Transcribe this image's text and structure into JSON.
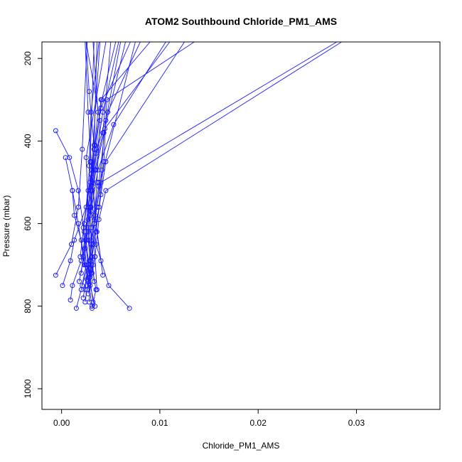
{
  "chart_data": {
    "type": "scatter",
    "title": "ATOM2 Southbound Chloride_PM1_AMS",
    "xlabel": "Chloride_PM1_AMS",
    "ylabel": "Pressure (mbar)",
    "xlim": [
      -0.002,
      0.0385
    ],
    "ylim": [
      1050,
      160
    ],
    "y_reversed": true,
    "x_ticks": [
      0.0,
      0.01,
      0.02,
      0.03
    ],
    "x_tick_labels": [
      "0.00",
      "0.01",
      "0.02",
      "0.03"
    ],
    "y_ticks": [
      200,
      400,
      600,
      800,
      1000
    ],
    "y_tick_labels": [
      "200",
      "400",
      "600",
      "800",
      "1000"
    ],
    "grid": false,
    "legend": "none",
    "series_color": "#1a1aff",
    "marker": "open-circle",
    "series": [
      {
        "x": [
          0.0069,
          0.0048,
          0.0035,
          0.003,
          0.0042,
          0.0058
        ],
        "y": [
          805,
          750,
          650,
          520,
          330,
          160
        ]
      },
      {
        "x": [
          0.0031,
          0.0035,
          0.003,
          0.0027,
          0.0025,
          0.0045
        ],
        "y": [
          805,
          760,
          690,
          560,
          440,
          160
        ]
      },
      {
        "x": [
          0.0015,
          0.002,
          0.0025,
          0.0022,
          0.003,
          0.0039
        ],
        "y": [
          805,
          760,
          700,
          610,
          480,
          160
        ]
      },
      {
        "x": [
          0.0009,
          0.0011,
          0.002,
          0.0027,
          0.0033,
          0.0036
        ],
        "y": [
          785,
          750,
          690,
          590,
          420,
          160
        ]
      },
      {
        "x": [
          0.0001,
          0.0009,
          0.0013,
          0.0025,
          0.0029,
          0.0033
        ],
        "y": [
          750,
          690,
          640,
          560,
          450,
          160
        ]
      },
      {
        "x": [
          -0.0006,
          0.001,
          0.0017,
          0.0021,
          0.0026
        ],
        "y": [
          725,
          650,
          560,
          420,
          160
        ]
      },
      {
        "x": [
          0.0026,
          0.0032,
          0.003,
          0.0038,
          0.0075
        ],
        "y": [
          760,
          700,
          610,
          510,
          160
        ]
      },
      {
        "x": [
          0.0042,
          0.0036,
          0.0032,
          0.0033,
          0.0028,
          0.0025
        ],
        "y": [
          725,
          620,
          510,
          410,
          280,
          160
        ]
      },
      {
        "x": [
          0.004,
          0.0034,
          0.003,
          0.0027,
          0.0024
        ],
        "y": [
          690,
          580,
          450,
          330,
          160
        ]
      },
      {
        "x": [
          0.0022,
          0.0027,
          0.0033,
          0.0038,
          0.0045,
          0.006
        ],
        "y": [
          780,
          700,
          600,
          500,
          350,
          160
        ]
      },
      {
        "x": [
          0.0028,
          0.0031,
          0.0029,
          0.0034,
          0.0042,
          0.005
        ],
        "y": [
          745,
          680,
          580,
          470,
          380,
          160
        ]
      },
      {
        "x": [
          0.002,
          0.0024,
          0.0027,
          0.0031,
          0.0037,
          0.0032
        ],
        "y": [
          720,
          640,
          560,
          470,
          330,
          160
        ]
      },
      {
        "x": [
          0.0024,
          0.0029,
          0.0035,
          0.004,
          0.0045,
          0.0125
        ],
        "y": [
          790,
          710,
          620,
          530,
          450,
          160
        ]
      },
      {
        "x": [
          0.0018,
          0.0024,
          0.003,
          0.0037,
          0.0053,
          0.0106
        ],
        "y": [
          740,
          660,
          570,
          470,
          360,
          160
        ]
      },
      {
        "x": [
          0.0033,
          0.003,
          0.0036,
          0.004,
          0.028
        ],
        "y": [
          740,
          640,
          560,
          500,
          160
        ]
      },
      {
        "x": [
          0.0027,
          0.0034,
          0.0038,
          0.0045,
          0.0285
        ],
        "y": [
          770,
          680,
          590,
          520,
          160
        ]
      },
      {
        "x": [
          0.0026,
          0.0032,
          0.0038,
          0.0043,
          0.0046,
          0.0135
        ],
        "y": [
          735,
          650,
          560,
          450,
          300,
          160
        ]
      },
      {
        "x": [
          -0.0006,
          0.0008,
          0.0017,
          0.0023,
          0.0028,
          0.0032
        ],
        "y": [
          375,
          440,
          520,
          620,
          720,
          790
        ]
      },
      {
        "x": [
          0.0004,
          0.0011,
          0.0017,
          0.0022,
          0.0027,
          0.0031
        ],
        "y": [
          440,
          520,
          600,
          680,
          740,
          800
        ]
      },
      {
        "x": [
          0.0011,
          0.0013,
          0.002,
          0.0024,
          0.0029,
          0.0034
        ],
        "y": [
          520,
          580,
          640,
          700,
          750,
          800
        ]
      },
      {
        "x": [
          0.0028,
          0.003,
          0.0027,
          0.0031,
          0.0035,
          0.004,
          0.009
        ],
        "y": [
          790,
          720,
          620,
          520,
          420,
          300,
          160
        ]
      },
      {
        "x": [
          0.0024,
          0.003,
          0.0036,
          0.0041,
          0.0043,
          0.0065
        ],
        "y": [
          760,
          650,
          560,
          470,
          380,
          160
        ]
      },
      {
        "x": [
          0.0036,
          0.0034,
          0.003,
          0.0028,
          0.003,
          0.0038
        ],
        "y": [
          760,
          680,
          560,
          460,
          330,
          160
        ]
      },
      {
        "x": [
          0.0029,
          0.0025,
          0.0027,
          0.0035,
          0.0047,
          0.008
        ],
        "y": [
          730,
          640,
          520,
          430,
          330,
          160
        ]
      },
      {
        "x": [
          0.0023,
          0.0026,
          0.003,
          0.0034,
          0.0041,
          0.0055
        ],
        "y": [
          700,
          610,
          510,
          410,
          300,
          160
        ]
      },
      {
        "x": [
          0.0021,
          0.0028,
          0.0033,
          0.0036,
          0.0039,
          0.0025
        ],
        "y": [
          750,
          690,
          600,
          500,
          350,
          160
        ]
      },
      {
        "x": [
          0.0019,
          0.0023,
          0.0029,
          0.0033,
          0.004,
          0.007
        ],
        "y": [
          680,
          600,
          500,
          420,
          320,
          160
        ]
      },
      {
        "x": [
          0.0031,
          0.0027,
          0.0029,
          0.0035,
          0.0044,
          0.011
        ],
        "y": [
          720,
          640,
          560,
          470,
          370,
          160
        ]
      }
    ]
  }
}
